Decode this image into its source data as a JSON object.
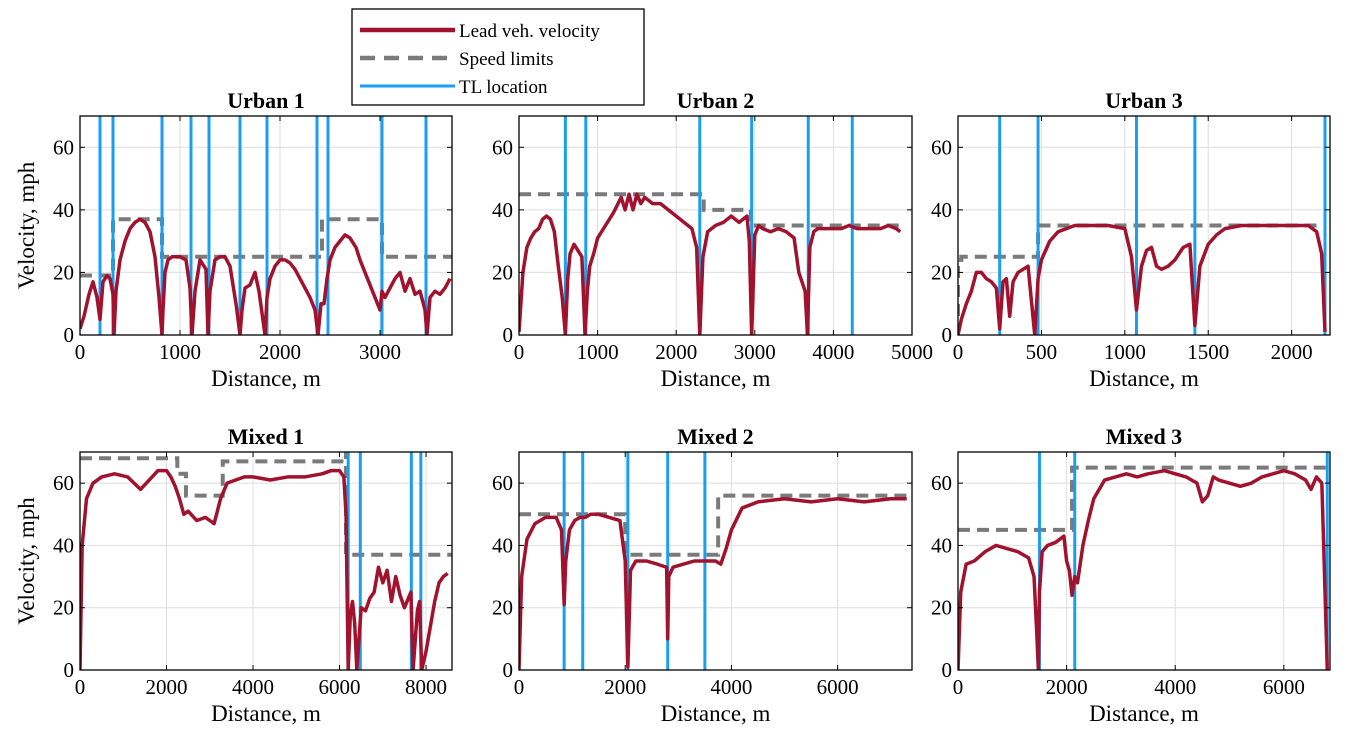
{
  "legend": {
    "items": [
      {
        "label": "Lead veh. velocity",
        "style": "solid",
        "color": "#a0122e"
      },
      {
        "label": "Speed limits",
        "style": "dashed",
        "color": "#7a7a7a"
      },
      {
        "label": "TL location",
        "style": "solid",
        "color": "#1a9ff0"
      }
    ]
  },
  "colors": {
    "velocity": "#a0122e",
    "speed_limit": "#7a7a7a",
    "traffic_light": "#1a9ff0",
    "grid": "#dedede"
  },
  "chart_data": [
    {
      "type": "line",
      "title": "Urban 1",
      "xlabel": "Distance, m",
      "ylabel": "Velocity, mph",
      "xlim": [
        0,
        3720
      ],
      "ylim": [
        0,
        70
      ],
      "xticks": [
        0,
        1000,
        2000,
        3000
      ],
      "yticks": [
        0,
        20,
        40,
        60
      ],
      "grid": true,
      "series": [
        {
          "name": "Lead veh. velocity",
          "x": [
            0,
            40,
            90,
            130,
            170,
            200,
            230,
            270,
            300,
            330,
            340,
            360,
            400,
            450,
            500,
            550,
            600,
            650,
            700,
            750,
            790,
            820,
            830,
            850,
            880,
            920,
            1000,
            1060,
            1100,
            1120,
            1150,
            1200,
            1260,
            1280,
            1300,
            1350,
            1400,
            1450,
            1500,
            1560,
            1600,
            1620,
            1650,
            1700,
            1750,
            1790,
            1850,
            1870,
            1900,
            1950,
            2000,
            2050,
            2100,
            2150,
            2200,
            2250,
            2300,
            2350,
            2380,
            2410,
            2440,
            2470,
            2500,
            2550,
            2600,
            2650,
            2700,
            2760,
            2800,
            2850,
            2900,
            2950,
            3000,
            3020,
            3050,
            3100,
            3150,
            3200,
            3250,
            3300,
            3350,
            3400,
            3450,
            3470,
            3500,
            3550,
            3600,
            3650,
            3700
          ],
          "y": [
            2,
            6,
            13,
            17,
            12,
            5,
            17,
            19,
            18,
            13,
            0,
            14,
            24,
            30,
            34,
            36,
            37,
            36,
            33,
            25,
            12,
            0,
            8,
            20,
            24,
            25,
            25,
            24,
            15,
            0,
            14,
            24,
            21,
            0,
            14,
            24,
            25,
            25,
            22,
            10,
            0,
            8,
            15,
            16,
            20,
            14,
            0,
            12,
            18,
            22,
            24,
            24,
            23,
            21,
            18,
            15,
            12,
            8,
            0,
            10,
            10,
            18,
            24,
            28,
            30,
            32,
            31,
            28,
            24,
            20,
            16,
            12,
            8,
            14,
            12,
            15,
            18,
            20,
            14,
            18,
            13,
            14,
            8,
            0,
            12,
            14,
            13,
            15,
            18
          ]
        },
        {
          "name": "Speed limits",
          "x": [
            0,
            330,
            330,
            820,
            820,
            2420,
            2420,
            3020,
            3020,
            3720
          ],
          "y": [
            19,
            19,
            37,
            37,
            25,
            25,
            37,
            37,
            25,
            25
          ]
        }
      ],
      "traffic_lights": [
        200,
        330,
        820,
        1110,
        1290,
        1600,
        1870,
        2370,
        2480,
        3020,
        3460
      ]
    },
    {
      "type": "line",
      "title": "Urban 2",
      "xlabel": "Distance, m",
      "ylabel": "Velocity, mph",
      "xlim": [
        0,
        5000
      ],
      "ylim": [
        0,
        70
      ],
      "xticks": [
        0,
        1000,
        2000,
        3000,
        4000,
        5000
      ],
      "yticks": [
        0,
        20,
        40,
        60
      ],
      "grid": true,
      "series": [
        {
          "name": "Lead veh. velocity",
          "x": [
            0,
            50,
            100,
            150,
            200,
            250,
            300,
            350,
            400,
            450,
            500,
            550,
            590,
            620,
            650,
            700,
            750,
            800,
            840,
            870,
            900,
            950,
            1000,
            1100,
            1200,
            1300,
            1350,
            1400,
            1450,
            1500,
            1550,
            1600,
            1700,
            1800,
            1900,
            2000,
            2100,
            2200,
            2260,
            2300,
            2340,
            2400,
            2500,
            2600,
            2700,
            2800,
            2900,
            2930,
            2960,
            3000,
            3050,
            3100,
            3200,
            3300,
            3400,
            3500,
            3560,
            3640,
            3670,
            3700,
            3750,
            3800,
            3900,
            4000,
            4100,
            4200,
            4300,
            4400,
            4500,
            4600,
            4700,
            4800,
            4850
          ],
          "y": [
            1,
            20,
            28,
            31,
            33,
            34,
            37,
            38,
            37,
            33,
            22,
            12,
            0,
            18,
            26,
            29,
            27,
            25,
            0,
            14,
            22,
            26,
            31,
            35,
            39,
            44,
            40,
            45,
            40,
            45,
            42,
            44,
            42,
            42,
            40,
            38,
            36,
            34,
            28,
            0,
            25,
            33,
            35,
            36,
            38,
            36,
            38,
            30,
            0,
            32,
            35,
            34,
            33,
            34,
            33,
            31,
            20,
            14,
            0,
            28,
            33,
            34,
            34,
            34,
            34,
            35,
            34,
            34,
            34,
            34,
            35,
            34,
            33
          ]
        },
        {
          "name": "Speed limits",
          "x": [
            0,
            2350,
            2350,
            2950,
            2950,
            4900
          ],
          "y": [
            45,
            45,
            40,
            40,
            35,
            35
          ]
        }
      ],
      "traffic_lights": [
        590,
        850,
        2300,
        2960,
        3680,
        4240
      ]
    },
    {
      "type": "line",
      "title": "Urban 3",
      "xlabel": "Distance, m",
      "ylabel": "Velocity, mph",
      "xlim": [
        0,
        2230
      ],
      "ylim": [
        0,
        70
      ],
      "xticks": [
        0,
        500,
        1000,
        1500,
        2000
      ],
      "yticks": [
        0,
        20,
        40,
        60
      ],
      "grid": true,
      "series": [
        {
          "name": "Lead veh. velocity",
          "x": [
            0,
            20,
            50,
            80,
            110,
            140,
            170,
            200,
            230,
            250,
            270,
            290,
            310,
            330,
            360,
            390,
            420,
            460,
            480,
            500,
            550,
            600,
            650,
            700,
            750,
            800,
            900,
            1000,
            1040,
            1070,
            1100,
            1130,
            1160,
            1190,
            1220,
            1260,
            1300,
            1350,
            1390,
            1420,
            1450,
            1500,
            1550,
            1600,
            1700,
            1800,
            1900,
            2000,
            2100,
            2150,
            2180,
            2200
          ],
          "y": [
            0,
            5,
            10,
            14,
            20,
            20,
            18,
            17,
            15,
            2,
            17,
            18,
            6,
            17,
            20,
            21,
            22,
            0,
            18,
            24,
            30,
            33,
            34,
            35,
            35,
            35,
            35,
            34,
            25,
            8,
            22,
            27,
            28,
            22,
            21,
            22,
            24,
            28,
            29,
            3,
            22,
            29,
            32,
            34,
            35,
            35,
            35,
            35,
            35,
            33,
            26,
            1
          ]
        },
        {
          "name": "Speed limits",
          "x": [
            0,
            0,
            20,
            20,
            480,
            480,
            2200
          ],
          "y": [
            0,
            24,
            24,
            25,
            25,
            35,
            35
          ]
        }
      ],
      "traffic_lights": [
        250,
        480,
        1070,
        1420,
        2200
      ]
    },
    {
      "type": "line",
      "title": "Mixed 1",
      "xlabel": "Distance, m",
      "ylabel": "Velocity, mph",
      "xlim": [
        0,
        8600
      ],
      "ylim": [
        0,
        70
      ],
      "xticks": [
        0,
        2000,
        4000,
        6000,
        8000
      ],
      "yticks": [
        0,
        20,
        40,
        60
      ],
      "grid": true,
      "series": [
        {
          "name": "Lead veh. velocity",
          "x": [
            0,
            50,
            150,
            300,
            500,
            800,
            1100,
            1400,
            1600,
            1800,
            2000,
            2100,
            2200,
            2300,
            2400,
            2500,
            2700,
            2900,
            3000,
            3100,
            3250,
            3400,
            3600,
            3800,
            4000,
            4400,
            4800,
            5200,
            5600,
            5800,
            6000,
            6100,
            6150,
            6200,
            6250,
            6300,
            6350,
            6400,
            6500,
            6600,
            6700,
            6800,
            6900,
            7000,
            7100,
            7200,
            7300,
            7400,
            7500,
            7650,
            7700,
            7800,
            7850,
            7900,
            8000,
            8100,
            8200,
            8300,
            8400,
            8500
          ],
          "y": [
            0,
            40,
            55,
            60,
            62,
            63,
            62,
            58,
            61,
            64,
            64,
            62,
            59,
            55,
            50,
            51,
            48,
            49,
            48,
            47,
            55,
            60,
            61,
            62,
            62,
            61,
            62,
            62,
            63,
            64,
            64,
            62,
            50,
            0,
            18,
            22,
            15,
            0,
            20,
            19,
            23,
            25,
            33,
            28,
            32,
            22,
            30,
            24,
            20,
            25,
            0,
            19,
            22,
            0,
            6,
            14,
            22,
            28,
            30,
            31
          ]
        },
        {
          "name": "Speed limits",
          "x": [
            0,
            2250,
            2250,
            2450,
            2450,
            3300,
            3300,
            6150,
            6150,
            6150,
            8600
          ],
          "y": [
            68,
            68,
            63,
            63,
            56,
            56,
            67,
            67,
            70,
            37,
            37
          ]
        }
      ],
      "traffic_lights": [
        6200,
        6480,
        7660,
        7880
      ]
    },
    {
      "type": "line",
      "title": "Mixed 2",
      "xlabel": "Distance, m",
      "ylabel": "Velocity, mph",
      "xlim": [
        0,
        7400
      ],
      "ylim": [
        0,
        70
      ],
      "xticks": [
        0,
        2000,
        4000,
        6000
      ],
      "yticks": [
        0,
        20,
        40,
        60
      ],
      "grid": true,
      "series": [
        {
          "name": "Lead veh. velocity",
          "x": [
            0,
            50,
            150,
            300,
            500,
            700,
            800,
            850,
            880,
            950,
            1050,
            1150,
            1250,
            1350,
            1500,
            1700,
            1900,
            2000,
            2050,
            2100,
            2200,
            2400,
            2600,
            2780,
            2800,
            2820,
            2900,
            3100,
            3300,
            3500,
            3700,
            3800,
            3900,
            4000,
            4200,
            4500,
            5000,
            5500,
            6000,
            6500,
            7000,
            7300
          ],
          "y": [
            0,
            30,
            42,
            47,
            49,
            49,
            45,
            21,
            35,
            45,
            48,
            49,
            49,
            50,
            50,
            49,
            48,
            35,
            1,
            32,
            35,
            35,
            34,
            33,
            10,
            30,
            33,
            34,
            35,
            35,
            35,
            34,
            39,
            45,
            52,
            54,
            55,
            54,
            55,
            54,
            55,
            55
          ]
        },
        {
          "name": "Speed limits",
          "x": [
            0,
            2000,
            2000,
            3750,
            3750,
            7300
          ],
          "y": [
            50,
            50,
            37,
            37,
            56,
            56
          ]
        }
      ],
      "traffic_lights": [
        850,
        1200,
        2050,
        2800,
        3500
      ]
    },
    {
      "type": "line",
      "title": "Mixed 3",
      "xlabel": "Distance, m",
      "ylabel": "Velocity, mph",
      "xlim": [
        0,
        6850
      ],
      "ylim": [
        0,
        70
      ],
      "xticks": [
        0,
        2000,
        4000,
        6000
      ],
      "yticks": [
        0,
        20,
        40,
        60
      ],
      "grid": true,
      "series": [
        {
          "name": "Lead veh. velocity",
          "x": [
            0,
            50,
            150,
            300,
            500,
            700,
            900,
            1100,
            1300,
            1400,
            1450,
            1480,
            1500,
            1550,
            1650,
            1800,
            1950,
            2000,
            2050,
            2100,
            2150,
            2200,
            2300,
            2400,
            2500,
            2700,
            2900,
            3100,
            3300,
            3500,
            3800,
            4000,
            4200,
            4400,
            4500,
            4600,
            4700,
            4800,
            5000,
            5200,
            5400,
            5600,
            5800,
            6000,
            6200,
            6400,
            6500,
            6600,
            6700,
            6800
          ],
          "y": [
            0,
            25,
            34,
            35,
            38,
            40,
            39,
            38,
            36,
            30,
            12,
            0,
            25,
            38,
            40,
            41,
            43,
            35,
            32,
            24,
            30,
            28,
            40,
            48,
            55,
            61,
            62,
            63,
            62,
            63,
            64,
            63,
            62,
            60,
            54,
            56,
            62,
            61,
            60,
            59,
            60,
            62,
            63,
            64,
            63,
            61,
            58,
            62,
            60,
            0
          ]
        },
        {
          "name": "Speed limits",
          "x": [
            0,
            2100,
            2100,
            6800
          ],
          "y": [
            45,
            45,
            65,
            65
          ]
        }
      ],
      "traffic_lights": [
        1500,
        2150,
        6800
      ]
    }
  ]
}
